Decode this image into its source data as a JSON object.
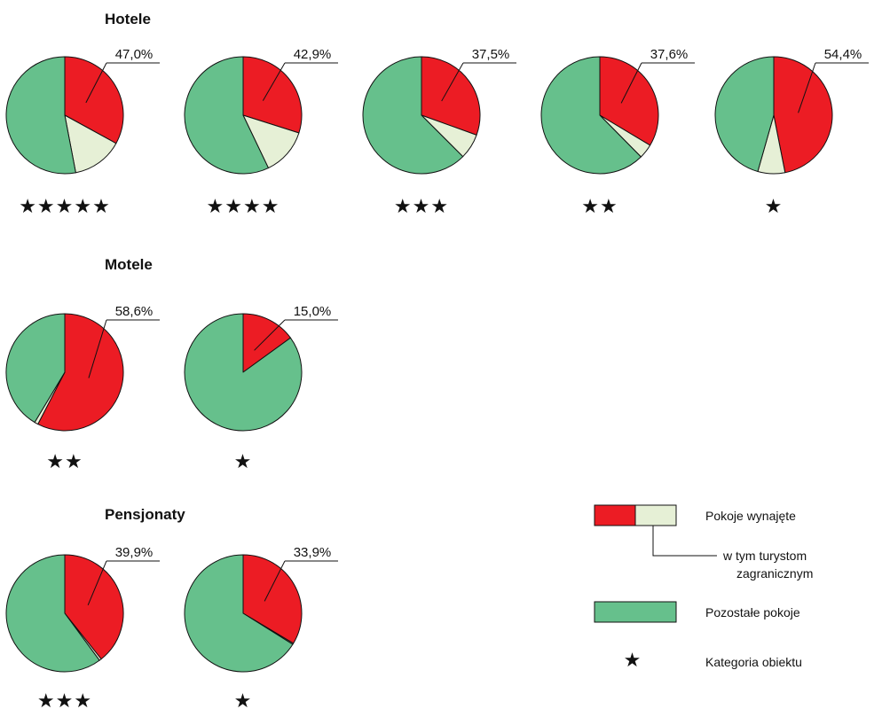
{
  "colors": {
    "rented": "#ec1c24",
    "foreign": "#e6f0d6",
    "other": "#66c08c",
    "outline": "#111111"
  },
  "chart_data": {
    "type": "pie",
    "groups": [
      {
        "title": "Hotele",
        "charts": [
          {
            "category": "★★★★★",
            "rented_pct": 47.0,
            "rented_label": "47,0%",
            "foreign_pct": 14.0
          },
          {
            "category": "★★★★",
            "rented_pct": 42.9,
            "rented_label": "42,9%",
            "foreign_pct": 13.0
          },
          {
            "category": "★★★",
            "rented_pct": 37.5,
            "rented_label": "37,5%",
            "foreign_pct": 7.0
          },
          {
            "category": "★★",
            "rented_pct": 37.6,
            "rented_label": "37,6%",
            "foreign_pct": 4.0
          },
          {
            "category": "★",
            "rented_pct": 54.4,
            "rented_label": "54,4%",
            "foreign_pct": 7.5
          }
        ]
      },
      {
        "title": "Motele",
        "charts": [
          {
            "category": "★★",
            "rented_pct": 58.6,
            "rented_label": "58,6%",
            "foreign_pct": 1.0
          },
          {
            "category": "★",
            "rented_pct": 15.0,
            "rented_label": "15,0%",
            "foreign_pct": 0.0
          }
        ]
      },
      {
        "title": "Pensjonaty",
        "charts": [
          {
            "category": "★★★",
            "rented_pct": 39.9,
            "rented_label": "39,9%",
            "foreign_pct": 0.6
          },
          {
            "category": "★",
            "rented_pct": 33.9,
            "rented_label": "33,9%",
            "foreign_pct": 0.3
          }
        ]
      }
    ],
    "legend": {
      "rented": "Pokoje wynajęte",
      "foreign_line1": "w tym turystom",
      "foreign_line2": "zagranicznym",
      "other": "Pozostałe pokoje",
      "star_symbol": "★",
      "category": "Kategoria obiektu"
    }
  }
}
